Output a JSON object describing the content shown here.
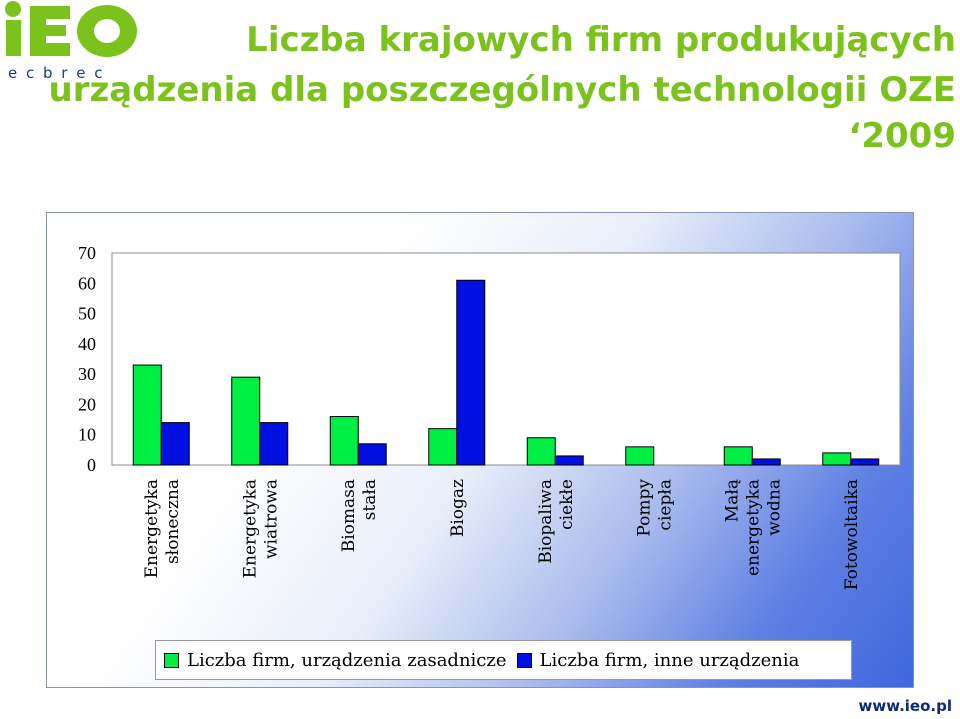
{
  "logo": {
    "wordmark": "iEO",
    "subtext": "e c  b r e c"
  },
  "title": {
    "line1": "Liczba krajowych firm produkujących",
    "line2": "urządzenia dla poszczególnych technologii OZE",
    "line3": "‘2009"
  },
  "footer": {
    "url": "www.ieo.pl"
  },
  "colors": {
    "series1": "#00ee44",
    "series2": "#0010e0",
    "title": "#7cc21d"
  },
  "chart_data": {
    "type": "bar",
    "title": "",
    "xlabel": "",
    "ylabel": "",
    "ylim": [
      0,
      70
    ],
    "yticks": [
      "0",
      "10",
      "20",
      "30",
      "40",
      "50",
      "60",
      "70"
    ],
    "grid": false,
    "legend_position": "bottom",
    "categories": [
      [
        "Energetyka",
        "słoneczna"
      ],
      [
        "Energetyka",
        "wiatrowa"
      ],
      [
        "Biomasa",
        "stała"
      ],
      [
        "Biogaz"
      ],
      [
        "Biopaliwa",
        "ciekłe"
      ],
      [
        "Pompy",
        "ciepła"
      ],
      [
        "Małą",
        "energetyka",
        "wodna"
      ],
      [
        "Fotowoltaika"
      ]
    ],
    "series": [
      {
        "name": "Liczba firm, urządzenia zasadnicze",
        "color": "#00ee44",
        "values": [
          33,
          29,
          16,
          12,
          9,
          6,
          6,
          4
        ]
      },
      {
        "name": "Liczba firm, inne urządzenia",
        "color": "#0010e0",
        "values": [
          14,
          14,
          7,
          61,
          3,
          0,
          2,
          2
        ]
      }
    ]
  }
}
